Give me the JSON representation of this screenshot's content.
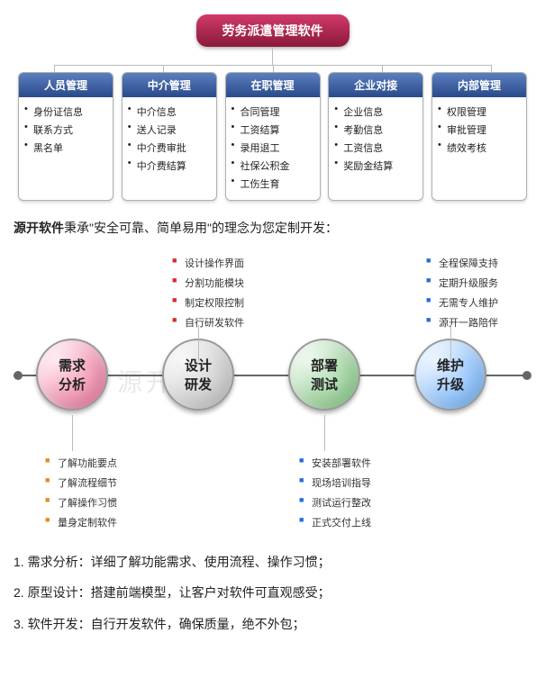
{
  "title": "劳务派遣管理软件",
  "modules": [
    {
      "name": "人员管理",
      "items": [
        "身份证信息",
        "联系方式",
        "黑名单"
      ]
    },
    {
      "name": "中介管理",
      "items": [
        "中介信息",
        "送人记录",
        "中介费审批",
        "中介费结算"
      ]
    },
    {
      "name": "在职管理",
      "items": [
        "合同管理",
        "工资结算",
        "录用退工",
        "社保公积金",
        "工伤生育"
      ]
    },
    {
      "name": "企业对接",
      "items": [
        "企业信息",
        "考勤信息",
        "工资信息",
        "奖励金结算"
      ]
    },
    {
      "name": "内部管理",
      "items": [
        "权限管理",
        "审批管理",
        "绩效考核"
      ]
    }
  ],
  "intro_strong": "源开软件",
  "intro_rest": "秉承\"安全可靠、简单易用\"的理念为您定制开发：",
  "watermark": "源开软件",
  "flow": {
    "phases": [
      {
        "label": "需求\n分析",
        "circle_class": "c1",
        "top_color": "col-red",
        "bot_color": "col-orange",
        "top_items": [],
        "bottom_items": [
          "了解功能要点",
          "了解流程细节",
          "了解操作习惯",
          "量身定制软件"
        ]
      },
      {
        "label": "设计\n研发",
        "circle_class": "c2",
        "top_color": "col-red",
        "bot_color": "",
        "top_items": [
          "设计操作界面",
          "分割功能模块",
          "制定权限控制",
          "自行研发软件"
        ],
        "bottom_items": []
      },
      {
        "label": "部署\n测试",
        "circle_class": "c3",
        "top_color": "",
        "bot_color": "col-blue",
        "top_items": [],
        "bottom_items": [
          "安装部署软件",
          "现场培训指导",
          "测试运行整改",
          "正式交付上线"
        ]
      },
      {
        "label": "维护\n升级",
        "circle_class": "c4",
        "top_color": "col-blue",
        "bot_color": "",
        "top_items": [
          "全程保障支持",
          "定期升级服务",
          "无需专人维护",
          "源开一路陪伴"
        ],
        "bottom_items": []
      }
    ]
  },
  "steps": [
    "1. 需求分析：详细了解功能需求、使用流程、操作习惯；",
    "2. 原型设计：搭建前端模型，让客户对软件可直观感受；",
    "3. 软件开发：自行开发软件，确保质量，绝不外包；"
  ]
}
